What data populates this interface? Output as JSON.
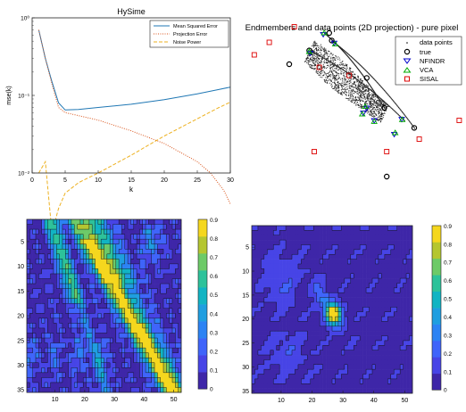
{
  "figure": {
    "background": "#ffffff"
  },
  "chart_data": [
    {
      "id": "hysime",
      "type": "line",
      "title": "HySime",
      "xlabel": "k",
      "ylabel": "mse(k)",
      "xlim": [
        0,
        30
      ],
      "ylim_log10": [
        -2,
        0
      ],
      "yscale": "log",
      "xticks": [
        0,
        5,
        10,
        15,
        20,
        25,
        30
      ],
      "yticks": [
        {
          "value": 0.01,
          "label": "10⁻²"
        },
        {
          "value": 0.1,
          "label": "10⁻¹"
        },
        {
          "value": 1,
          "label": "10⁰"
        }
      ],
      "legend_position": "top-right",
      "series": [
        {
          "name": "Mean Squared Error",
          "color": "#1f77b4",
          "style": "solid",
          "x": [
            1,
            2,
            3,
            4,
            5,
            7,
            10,
            15,
            20,
            25,
            28,
            30
          ],
          "y": [
            0.7,
            0.3,
            0.15,
            0.08,
            0.065,
            0.066,
            0.07,
            0.077,
            0.088,
            0.105,
            0.118,
            0.128
          ]
        },
        {
          "name": "Projection Error",
          "color": "#d95319",
          "style": "dotted",
          "x": [
            1,
            2,
            3,
            4,
            5,
            7,
            10,
            15,
            20,
            25,
            27,
            29,
            30
          ],
          "y": [
            0.7,
            0.3,
            0.14,
            0.07,
            0.06,
            0.055,
            0.048,
            0.035,
            0.024,
            0.014,
            0.01,
            0.006,
            0.004
          ]
        },
        {
          "name": "Noise Power",
          "color": "#edb120",
          "style": "dashed",
          "x": [
            1,
            2,
            3,
            4,
            5,
            7,
            10,
            15,
            20,
            25,
            28,
            30
          ],
          "y": [
            0.01,
            0.014,
            0.0017,
            0.0035,
            0.0055,
            0.0075,
            0.01,
            0.017,
            0.03,
            0.05,
            0.068,
            0.082
          ]
        }
      ]
    },
    {
      "id": "projection",
      "type": "scatter",
      "title": "Endmembers and data points (2D projection) - pure pixel",
      "axes_visible": false,
      "legend_position": "top-right",
      "series": [
        {
          "name": "data points",
          "marker": "dot",
          "color": "#000000"
        },
        {
          "name": "true",
          "marker": "circle",
          "color": "#000000",
          "points": [
            [
              -1.0,
              0.4
            ],
            [
              -0.6,
              0.62
            ],
            [
              -0.15,
              0.78
            ],
            [
              0.55,
              0.18
            ],
            [
              1.5,
              -0.62
            ],
            [
              0.9,
              -0.3
            ],
            [
              0.95,
              -1.4
            ],
            [
              -0.2,
              0.9
            ]
          ]
        },
        {
          "name": "NFINDR",
          "marker": "triangle-down",
          "color": "#0000cc",
          "points": [
            [
              -0.58,
              0.58
            ],
            [
              -0.32,
              0.88
            ],
            [
              -0.1,
              0.74
            ],
            [
              1.25,
              -0.48
            ],
            [
              0.55,
              -0.3
            ],
            [
              0.7,
              -0.5
            ],
            [
              1.1,
              -0.72
            ],
            [
              0.48,
              -0.38
            ]
          ]
        },
        {
          "name": "VCA",
          "marker": "triangle-up",
          "color": "#00aa00",
          "points": [
            [
              -0.6,
              0.6
            ],
            [
              -0.3,
              0.9
            ],
            [
              -0.08,
              0.72
            ],
            [
              1.26,
              -0.49
            ],
            [
              0.52,
              -0.28
            ],
            [
              0.7,
              -0.52
            ],
            [
              1.12,
              -0.7
            ],
            [
              0.46,
              -0.4
            ]
          ]
        },
        {
          "name": "SISAL",
          "marker": "square",
          "color": "#dd0000",
          "points": [
            [
              -1.4,
              0.75
            ],
            [
              -0.9,
              1.0
            ],
            [
              0.1,
              1.5
            ],
            [
              -1.7,
              0.55
            ],
            [
              2.4,
              -0.5
            ],
            [
              0.95,
              -1.0
            ],
            [
              -0.5,
              -1.0
            ],
            [
              0.2,
              0.22
            ],
            [
              1.6,
              -0.8
            ],
            [
              -0.4,
              0.35
            ]
          ]
        }
      ],
      "data_cloud_note": "",
      "arcs": [
        {
          "from": [
            -0.6,
            0.62
          ],
          "to": [
            1.3,
            -0.5
          ]
        },
        {
          "from": [
            -0.15,
            0.78
          ],
          "to": [
            1.5,
            -0.62
          ]
        },
        {
          "from": [
            -0.3,
            0.9
          ],
          "to": [
            0.9,
            -0.3
          ]
        }
      ]
    },
    {
      "id": "abundance1",
      "type": "heatmap",
      "colormap": "parula",
      "xticks": [
        10,
        20,
        30,
        40,
        50
      ],
      "yticks": [
        5,
        10,
        15,
        20,
        25,
        30,
        35
      ],
      "xlim": [
        1,
        52
      ],
      "ylim": [
        1,
        35
      ],
      "colorbar_ticks": [
        "0",
        "0.1",
        "0.2",
        "0.3",
        "0.4",
        "0.5",
        "0.6",
        "0.7",
        "0.8",
        "0.9"
      ],
      "clim": [
        0,
        0.9
      ]
    },
    {
      "id": "abundance2",
      "type": "heatmap",
      "colormap": "parula",
      "xticks": [
        10,
        20,
        30,
        40,
        50
      ],
      "yticks": [
        5,
        10,
        15,
        20,
        25,
        30,
        35
      ],
      "xlim": [
        1,
        52
      ],
      "ylim": [
        1,
        35
      ],
      "colorbar_ticks": [
        "0",
        "0.1",
        "0.2",
        "0.3",
        "0.4",
        "0.5",
        "0.6",
        "0.7",
        "0.8",
        "0.9"
      ],
      "clim": [
        0,
        0.9
      ]
    }
  ]
}
